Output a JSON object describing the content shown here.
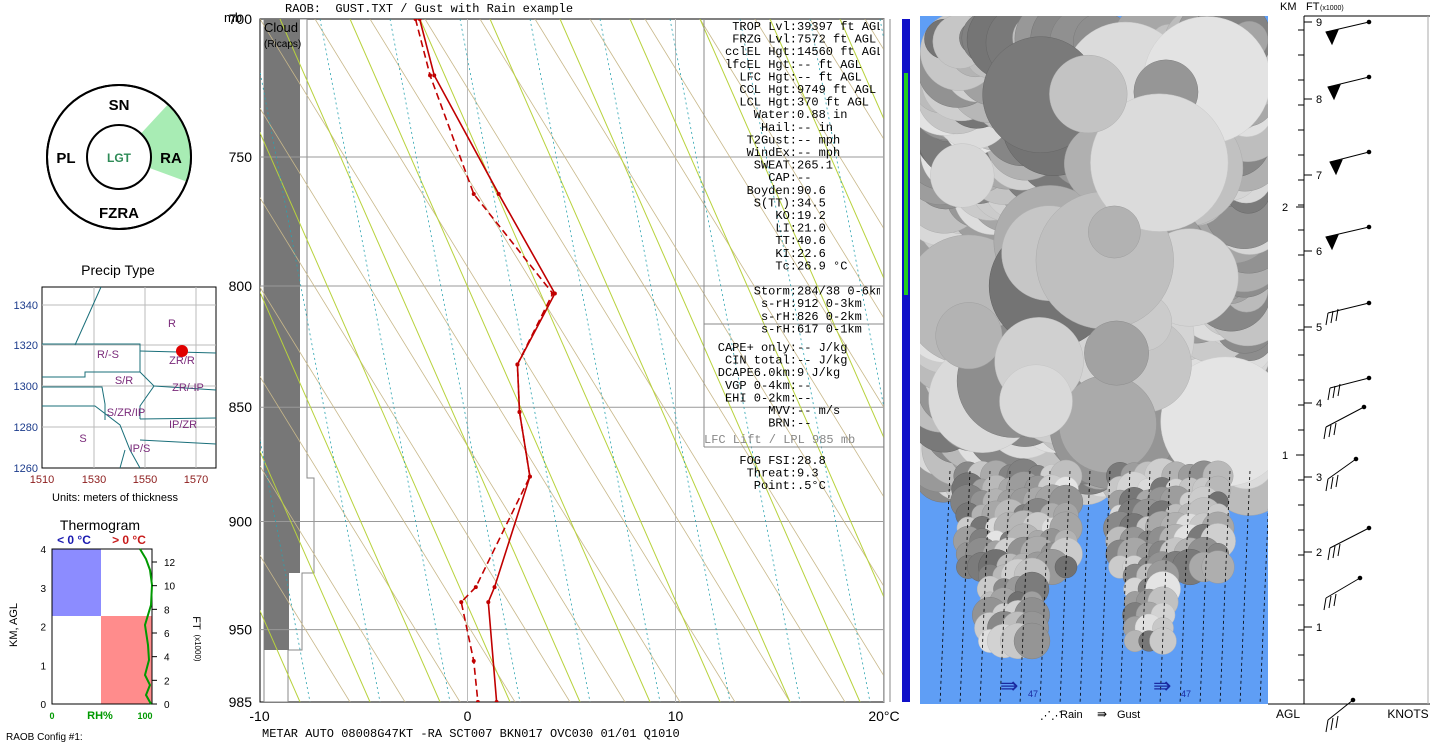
{
  "ptype_wheel": {
    "sn": "SN",
    "pl": "PL",
    "ra": "RA",
    "fzra": "FZRA",
    "lgt": "LGT",
    "active_color": "#a8ecb4",
    "lgt_color": "#2e8b57"
  },
  "precip_type": {
    "title": "Precip Type",
    "units": "Units: meters of thickness",
    "y_ticks": [
      "1340",
      "1320",
      "1300",
      "1280",
      "1260"
    ],
    "x_ticks": [
      "1510",
      "1530",
      "1550",
      "1570"
    ],
    "region_labels": [
      "R",
      "R/-S",
      "ZR/R",
      "S/R",
      "ZR/-IP",
      "S/ZR/IP",
      "IP/ZR",
      "S",
      "IP/S"
    ],
    "dot_color": "#e00000"
  },
  "thermogram": {
    "title": "Thermogram",
    "below_zero": "< 0 °C",
    "above_zero": "> 0 °C",
    "y_label": "KM, AGL",
    "y_ticks": [
      "4",
      "3",
      "2",
      "1",
      "0"
    ],
    "ft_ticks": [
      "12",
      "10",
      "8",
      "6",
      "4",
      "2",
      "0"
    ],
    "ft_label": "FT",
    "ft_sub": "(x1000)",
    "x_left": "0",
    "x_mid": "RH%",
    "x_right": "100",
    "cold_color": "#8c8cff",
    "warm_color": "#ff8c8c",
    "config_label": "RAOB Config #1:"
  },
  "skewt": {
    "header": "RAOB:  GUST.TXT / Gust with Rain example",
    "mb_unit": "mb",
    "pressure_labels": [
      "700",
      "750",
      "800",
      "850",
      "900",
      "950",
      "985"
    ],
    "temp_labels": [
      "-10",
      "0",
      "10",
      "20°C"
    ],
    "cloud_label": "Cloud",
    "ricaps_label": "(Ricaps)",
    "metar": "METAR AUTO 08008G47KT -RA SCT007 BKN017 OVC030 01/01 Q1010",
    "line_color": "#c00000"
  },
  "indices": [
    "TROP Lvl:  39397 ft AGL",
    "FRZG Lvl:   7572 ft AGL",
    "cclEL Hgt:  14560 ft AGL",
    "lfcEL Hgt:     -- ft AGL",
    "LFC Hgt:     -- ft AGL",
    "CCL Hgt:   9749 ft AGL",
    "LCL Hgt:    370 ft AGL",
    "Water:   0.88 in",
    "Hail:     -- in",
    "T2Gust:     -- mph",
    "WindEx:     -- mph",
    "SWEAT:  265.1",
    "CAP:     --",
    "Boyden:   90.6",
    "S(TT):   34.5",
    "KO:   19.2",
    "LI:   21.0",
    "TT:   40.6",
    "KI:   22.6",
    "Tc:   26.9 °C",
    "",
    "Storm:  284/38 0-6km",
    "s-rH:   912  0-3km",
    "s-rH:   826  0-2km",
    "s-rH:   617  0-1km"
  ],
  "indices2": [
    "CAPE+ only:     -- J/kg",
    "CIN total:     -- J/kg",
    "DCAPE6.0km:      9 J/kg",
    "VGP 0-4km:     --",
    "EHI 0-2km:     --",
    "MVV:     -- m/s",
    "BRN:     --"
  ],
  "lifted": "LFC Lift / LPL 985 mb",
  "fog": [
    "FOG FSI:  28.8",
    "Threat:   9.3",
    "Point:    .5°C"
  ],
  "cloud_panel": {
    "sky_color": "#5f9ef5",
    "gust_value": "47",
    "legend_rain": "Rain",
    "legend_gust": "Gust"
  },
  "wind_panel": {
    "km_label": "KM",
    "ft_label": "FT",
    "ft_sub": "(x1000)",
    "km_ticks": [
      "2",
      "1"
    ],
    "ft_ticks": [
      "9",
      "8",
      "7",
      "6",
      "5",
      "4",
      "3",
      "2",
      "1"
    ],
    "agl": "AGL",
    "knots": "KNOTS"
  },
  "chart_data": {
    "type": "line",
    "title": "RAOB:  GUST.TXT / Gust with Rain example",
    "xlabel": "°C",
    "ylabel": "mb",
    "xlim": [
      -10,
      20
    ],
    "ylim": [
      985,
      700
    ],
    "series": [
      {
        "values": [
          [
            700,
            -2.3
          ],
          [
            720,
            -1.6
          ],
          [
            764,
            1.5
          ],
          [
            803,
            4.2
          ],
          [
            832,
            2.4
          ],
          [
            852,
            2.5
          ],
          [
            880,
            3.0
          ],
          [
            930,
            1.3
          ],
          [
            937,
            1.0
          ],
          [
            985,
            1.4
          ]
        ]
      },
      {
        "values": [
          [
            700,
            -2.5
          ],
          [
            720,
            -1.8
          ],
          [
            764,
            0.3
          ],
          [
            803,
            4.1
          ],
          [
            832,
            2.4
          ],
          [
            852,
            2.5
          ],
          [
            880,
            3.0
          ],
          [
            930,
            0.4
          ],
          [
            937,
            -0.3
          ],
          [
            965,
            0.3
          ],
          [
            985,
            0.5
          ]
        ]
      }
    ],
    "precip_point": {
      "x": 1566,
      "y": 1317
    }
  }
}
